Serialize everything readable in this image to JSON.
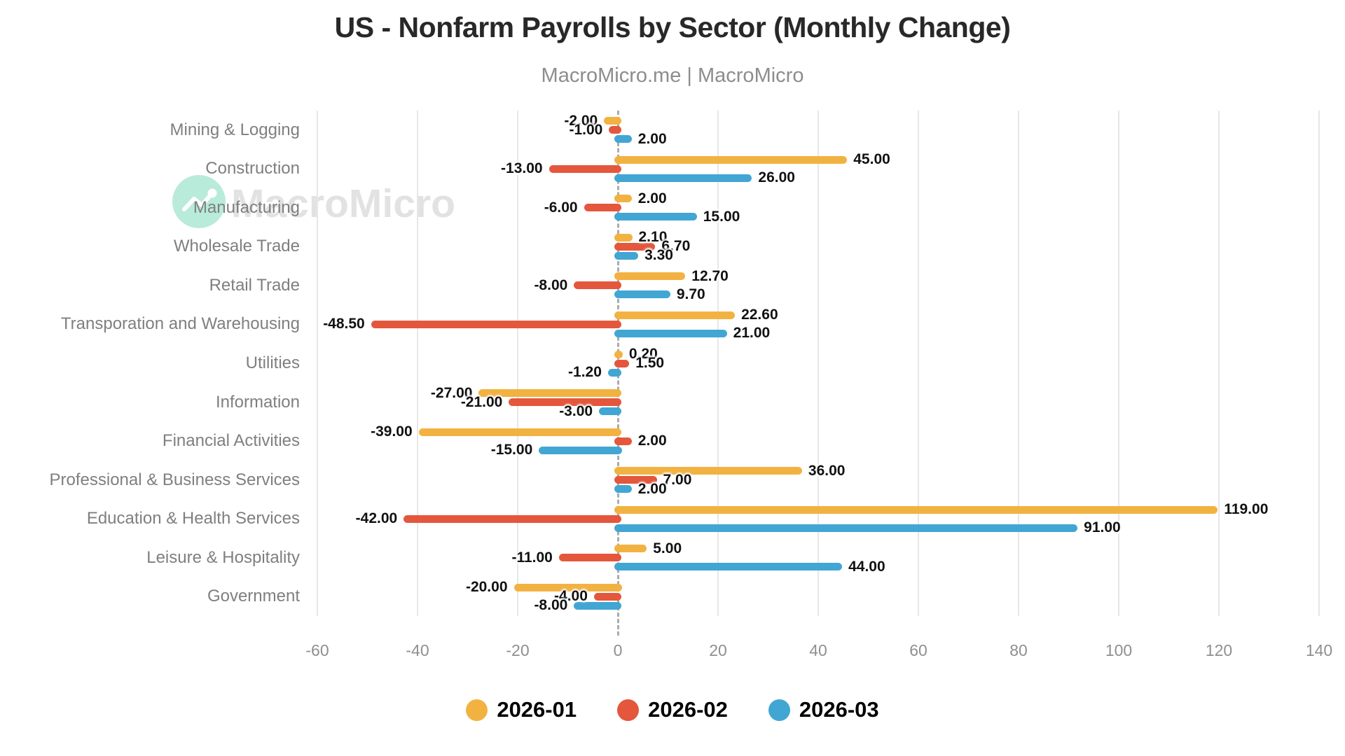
{
  "header": {
    "title": "US - Nonfarm Payrolls by Sector (Monthly Change)",
    "subtitle": "MacroMicro.me | MacroMicro"
  },
  "watermark": {
    "icon": "chart-line-icon",
    "text": "MacroMicro",
    "circle_color": "#b9ebda",
    "text_color": "#e2e2e2"
  },
  "chart_data": {
    "type": "bar",
    "orientation": "horizontal",
    "title": "US - Nonfarm Payrolls by Sector (Monthly Change)",
    "subtitle": "MacroMicro.me | MacroMicro",
    "categories": [
      "Mining & Logging",
      "Construction",
      "Manufacturing",
      "Wholesale Trade",
      "Retail Trade",
      "Transporation and Warehousing",
      "Utilities",
      "Information",
      "Financial Activities",
      "Professional & Business Services",
      "Education & Health Services",
      "Leisure & Hospitality",
      "Government"
    ],
    "series": [
      {
        "name": "2026-01",
        "color": "#F2B242",
        "values": [
          -2.0,
          45.0,
          2.0,
          2.1,
          12.7,
          22.6,
          0.2,
          -27.0,
          -39.0,
          36.0,
          119.0,
          5.0,
          -20.0
        ]
      },
      {
        "name": "2026-02",
        "color": "#E4573C",
        "values": [
          -1.0,
          -13.0,
          -6.0,
          6.7,
          -8.0,
          -48.5,
          1.5,
          -21.0,
          2.0,
          7.0,
          -42.0,
          -11.0,
          -4.0
        ]
      },
      {
        "name": "2026-03",
        "color": "#41A6D3",
        "values": [
          2.0,
          26.0,
          15.0,
          3.3,
          9.7,
          21.0,
          -1.2,
          -3.0,
          -15.0,
          2.0,
          91.0,
          44.0,
          -8.0
        ]
      }
    ],
    "xlabel": "",
    "ylabel": "",
    "xlim": [
      -60,
      140
    ],
    "x_ticks": [
      -60,
      -40,
      -20,
      0,
      20,
      40,
      60,
      80,
      100,
      120,
      140
    ],
    "value_labels": "all bars, 2 decimal places",
    "grid": "vertical gridlines",
    "zero_line": "dashed gray",
    "legend_position": "bottom"
  }
}
